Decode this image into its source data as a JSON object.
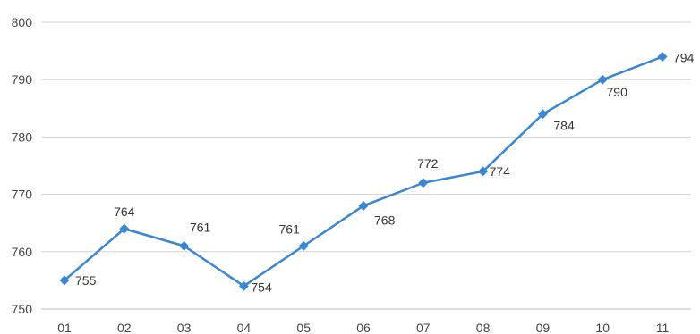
{
  "chart_data": {
    "type": "line",
    "title": "",
    "xlabel": "",
    "ylabel": "",
    "categories": [
      "01",
      "02",
      "03",
      "04",
      "05",
      "06",
      "07",
      "08",
      "09",
      "10",
      "11"
    ],
    "series": [
      {
        "values": [
          755,
          764,
          761,
          754,
          761,
          768,
          772,
          774,
          784,
          790,
          794
        ],
        "color": "#3a86d0",
        "marker": "diamond",
        "data_labels": [
          "755",
          "764",
          "761",
          "754",
          "761",
          "768",
          "772",
          "774",
          "784",
          "790",
          "794"
        ]
      }
    ],
    "ylim": [
      750,
      800
    ],
    "yticks": [
      750,
      760,
      770,
      780,
      790,
      800
    ],
    "ytick_labels": [
      "750",
      "760",
      "770",
      "780",
      "790",
      "800"
    ],
    "grid": true,
    "legend": "none"
  }
}
